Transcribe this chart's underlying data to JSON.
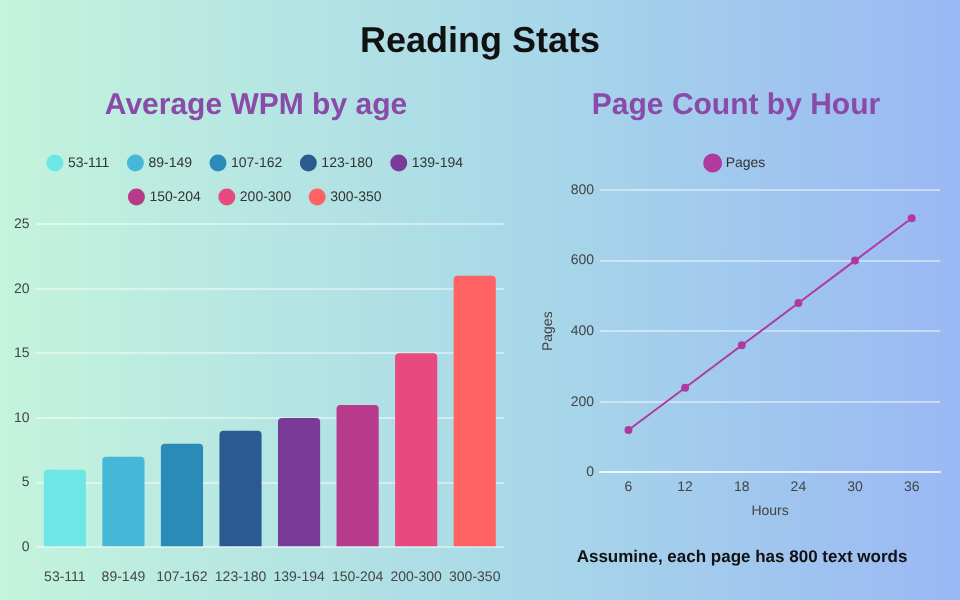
{
  "chart_data": [
    {
      "type": "bar",
      "title": "Average WPM by age",
      "annotations": [
        "Reading Stats"
      ],
      "categories": [
        "53-111",
        "89-149",
        "107-162",
        "123-180",
        "139-194",
        "150-204",
        "200-300",
        "300-350"
      ],
      "series": [
        {
          "name": "53-111",
          "color": "#6ee6e6",
          "values": [
            6,
            null,
            null,
            null,
            null,
            null,
            null,
            null
          ]
        },
        {
          "name": "89-149",
          "color": "#45b8d8",
          "values": [
            null,
            7,
            null,
            null,
            null,
            null,
            null,
            null
          ]
        },
        {
          "name": "107-162",
          "color": "#2a8ab8",
          "values": [
            null,
            null,
            8,
            null,
            null,
            null,
            null,
            null
          ]
        },
        {
          "name": "123-180",
          "color": "#2a5a90",
          "values": [
            null,
            null,
            null,
            9,
            null,
            null,
            null,
            null
          ]
        },
        {
          "name": "139-194",
          "color": "#7a3a98",
          "values": [
            null,
            null,
            null,
            null,
            10,
            null,
            null,
            null
          ]
        },
        {
          "name": "150-204",
          "color": "#b83a8a",
          "values": [
            null,
            null,
            null,
            null,
            null,
            11,
            null,
            null
          ]
        },
        {
          "name": "200-300",
          "color": "#e84a80",
          "values": [
            null,
            null,
            null,
            null,
            null,
            null,
            15,
            null
          ]
        },
        {
          "name": "300-350",
          "color": "#ff6262",
          "values": [
            null,
            null,
            null,
            null,
            null,
            null,
            null,
            21
          ]
        }
      ],
      "ylim": [
        0,
        25
      ],
      "yticks": [
        0,
        5,
        10,
        15,
        20,
        25
      ],
      "grid": "y",
      "legend": "top"
    },
    {
      "type": "line",
      "title": "Page Count by Hour",
      "xlabel": "Hours",
      "ylabel": "Pages",
      "annotations": [
        "Assumine, each page has 800 text words"
      ],
      "x": [
        6,
        12,
        18,
        24,
        30,
        36
      ],
      "series": [
        {
          "name": "Pages",
          "color": "#b03aa0",
          "values": [
            120,
            240,
            360,
            480,
            600,
            720
          ]
        }
      ],
      "xlim": [
        3,
        39
      ],
      "xticks": [
        6,
        12,
        18,
        24,
        30,
        36
      ],
      "ylim": [
        0,
        800
      ],
      "yticks": [
        0,
        200,
        400,
        600,
        800
      ],
      "grid": "y",
      "legend": "top",
      "marker": "circle",
      "line_style": "solid"
    }
  ]
}
